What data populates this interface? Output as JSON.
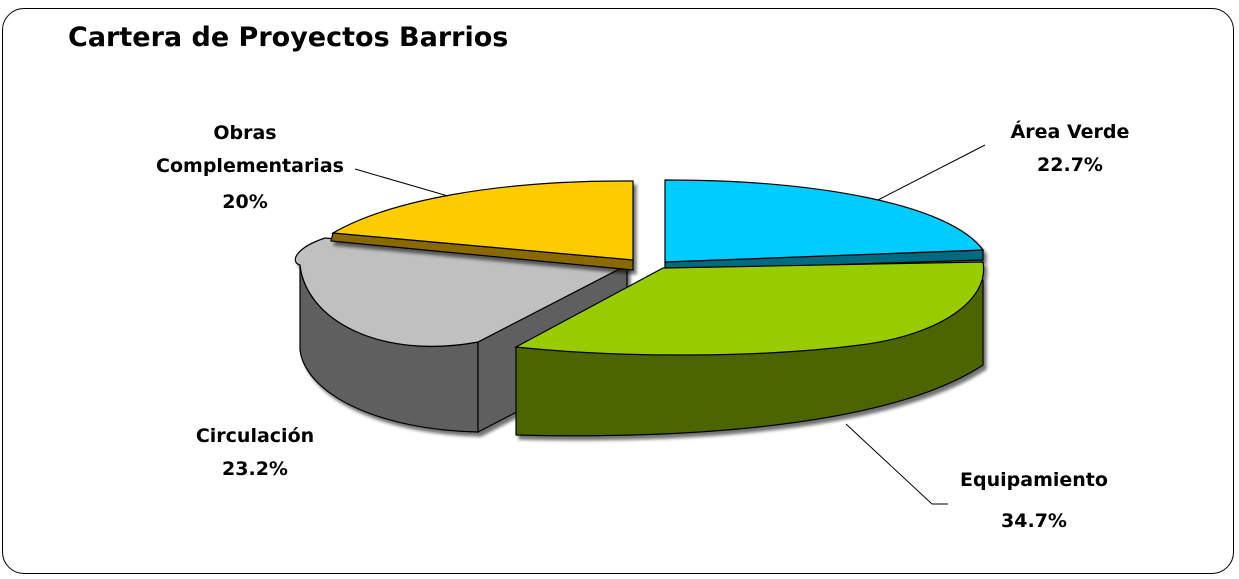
{
  "chart_data": {
    "type": "pie",
    "title": "Cartera de Proyectos Barrios",
    "slices": [
      {
        "label": "Área Verde",
        "value": 22.7,
        "value_label": "22.7%",
        "color": "#00CCFF"
      },
      {
        "label": "Equipamiento",
        "value": 34.7,
        "value_label": "34.7%",
        "color": "#99CC00"
      },
      {
        "label": "Circulación",
        "value": 23.2,
        "value_label": "23.2%",
        "color": "#C0C0C0"
      },
      {
        "label": "Obras Complementarias",
        "label_lines": [
          "Obras",
          "Complementarias"
        ],
        "value": 20,
        "value_label": "20%",
        "color": "#FFCC00"
      }
    ],
    "style": "3d-exploded"
  }
}
